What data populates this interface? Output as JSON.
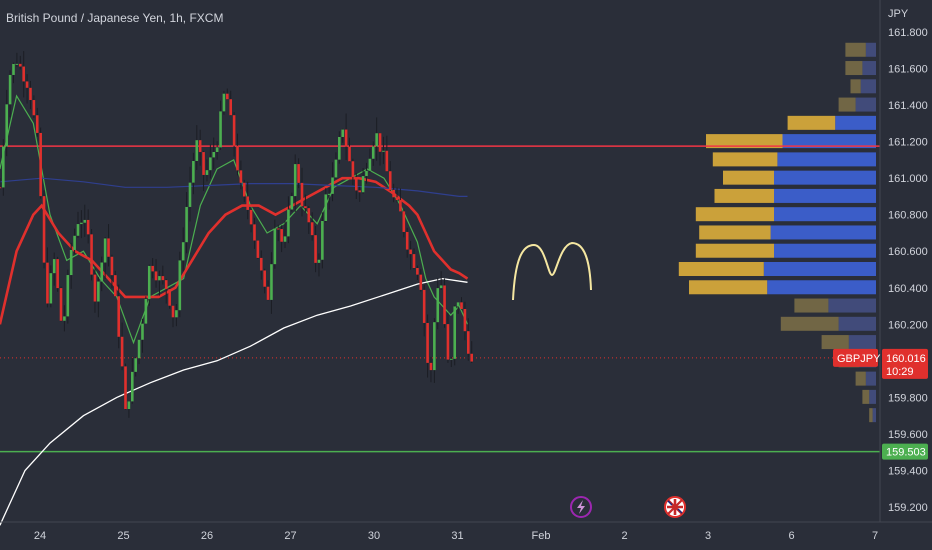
{
  "header": {
    "title": "British Pound / Japanese Yen, 1h, FXCM"
  },
  "chart_data": {
    "type": "candlestick",
    "title": "British Pound / Japanese Yen, 1h, FXCM",
    "currency_label": "JPY",
    "ylim": [
      159.1,
      161.9
    ],
    "y_ticks": [
      "161.800",
      "161.600",
      "161.400",
      "161.200",
      "161.000",
      "160.800",
      "160.600",
      "160.400",
      "160.200",
      "160.000",
      "159.800",
      "159.600",
      "159.400",
      "159.200"
    ],
    "y_tick_values": [
      161.8,
      161.6,
      161.4,
      161.2,
      161.0,
      160.8,
      160.6,
      160.4,
      160.2,
      160.0,
      159.8,
      159.6,
      159.4,
      159.2
    ],
    "x_ticks": [
      "24",
      "25",
      "26",
      "27",
      "30",
      "31",
      "Feb",
      "2",
      "3",
      "6",
      "7"
    ],
    "x_tick_index": [
      0,
      1,
      2,
      3,
      4,
      5,
      6,
      7,
      8,
      9,
      10
    ],
    "last_price": {
      "value": "160.016",
      "symbol": "GBPJPY",
      "countdown": "10:29",
      "color": "#e0302d"
    },
    "support_line": {
      "value": "159.503",
      "color": "#4caf50"
    },
    "resistance_line": {
      "value": 161.175,
      "color": "#f23645"
    },
    "volume_profile_note": "horizontal volume profile on right side",
    "colors": {
      "up_candle": "#4caf50",
      "down_candle": "#e0302d",
      "sma_fast": "#4caf50",
      "sma_mid": "#e0302d",
      "sma_slow": "#2f3f8f",
      "ma_long": "#ffffff",
      "pattern": "#f5e7a1",
      "profile_up": "#d4a83a",
      "profile_down": "#3d63d8",
      "profile_muted_up": "#8a7a4a",
      "profile_muted_down": "#4a5590"
    },
    "price_path": [
      [
        0,
        160.95
      ],
      [
        0.1,
        161.55
      ],
      [
        0.2,
        161.65
      ],
      [
        0.35,
        161.5
      ],
      [
        0.45,
        161.2
      ],
      [
        0.5,
        160.8
      ],
      [
        0.55,
        160.3
      ],
      [
        0.65,
        160.55
      ],
      [
        0.75,
        160.15
      ],
      [
        0.85,
        160.6
      ],
      [
        0.95,
        160.8
      ],
      [
        1.05,
        160.7
      ],
      [
        1.15,
        160.3
      ],
      [
        1.25,
        160.7
      ],
      [
        1.35,
        160.45
      ],
      [
        1.45,
        160.05
      ],
      [
        1.5,
        159.7
      ],
      [
        1.6,
        159.95
      ],
      [
        1.7,
        160.2
      ],
      [
        1.8,
        160.55
      ],
      [
        1.9,
        160.45
      ],
      [
        2.0,
        160.4
      ],
      [
        2.1,
        160.2
      ],
      [
        2.15,
        160.5
      ],
      [
        2.25,
        160.9
      ],
      [
        2.35,
        161.2
      ],
      [
        2.45,
        161.0
      ],
      [
        2.6,
        161.2
      ],
      [
        2.7,
        161.5
      ],
      [
        2.8,
        161.2
      ],
      [
        2.9,
        160.9
      ],
      [
        3.0,
        160.8
      ],
      [
        3.1,
        160.55
      ],
      [
        3.2,
        160.3
      ],
      [
        3.3,
        160.8
      ],
      [
        3.4,
        160.6
      ],
      [
        3.5,
        160.95
      ],
      [
        3.55,
        161.1
      ],
      [
        3.6,
        160.9
      ],
      [
        3.7,
        160.75
      ],
      [
        3.8,
        160.5
      ],
      [
        3.9,
        160.9
      ],
      [
        4.0,
        161.0
      ],
      [
        4.1,
        161.3
      ],
      [
        4.2,
        161.05
      ],
      [
        4.3,
        160.9
      ],
      [
        4.4,
        161.1
      ],
      [
        4.5,
        161.25
      ],
      [
        4.6,
        161.1
      ],
      [
        4.7,
        160.9
      ],
      [
        4.8,
        160.8
      ],
      [
        4.9,
        160.6
      ],
      [
        5.0,
        160.5
      ],
      [
        5.05,
        160.4
      ],
      [
        5.1,
        160.1
      ],
      [
        5.15,
        159.85
      ],
      [
        5.2,
        160.2
      ],
      [
        5.25,
        160.45
      ],
      [
        5.3,
        160.4
      ],
      [
        5.35,
        160.0
      ],
      [
        5.4,
        159.95
      ],
      [
        5.45,
        160.3
      ],
      [
        5.5,
        160.35
      ],
      [
        5.55,
        160.2
      ],
      [
        5.6,
        160.1
      ],
      [
        5.65,
        159.98
      ]
    ],
    "series": [
      {
        "name": "fast_ma",
        "points": [
          [
            0,
            161.05
          ],
          [
            0.2,
            161.45
          ],
          [
            0.4,
            161.3
          ],
          [
            0.6,
            160.8
          ],
          [
            0.8,
            160.55
          ],
          [
            1.0,
            160.6
          ],
          [
            1.2,
            160.45
          ],
          [
            1.4,
            160.35
          ],
          [
            1.6,
            160.1
          ],
          [
            1.8,
            160.35
          ],
          [
            2.0,
            160.4
          ],
          [
            2.2,
            160.45
          ],
          [
            2.4,
            160.85
          ],
          [
            2.6,
            161.05
          ],
          [
            2.8,
            161.1
          ],
          [
            3.0,
            160.85
          ],
          [
            3.2,
            160.7
          ],
          [
            3.4,
            160.75
          ],
          [
            3.6,
            160.85
          ],
          [
            3.8,
            160.75
          ],
          [
            4.0,
            160.95
          ],
          [
            4.2,
            161.0
          ],
          [
            4.4,
            161.05
          ],
          [
            4.6,
            161.0
          ],
          [
            4.8,
            160.85
          ],
          [
            5.0,
            160.65
          ],
          [
            5.1,
            160.45
          ],
          [
            5.2,
            160.35
          ],
          [
            5.3,
            160.3
          ],
          [
            5.4,
            160.25
          ],
          [
            5.5,
            160.3
          ],
          [
            5.6,
            160.2
          ]
        ]
      },
      {
        "name": "mid_ma",
        "points": [
          [
            0,
            160.2
          ],
          [
            0.2,
            160.6
          ],
          [
            0.4,
            160.8
          ],
          [
            0.5,
            160.85
          ],
          [
            0.7,
            160.7
          ],
          [
            0.9,
            160.6
          ],
          [
            1.1,
            160.55
          ],
          [
            1.3,
            160.45
          ],
          [
            1.5,
            160.35
          ],
          [
            1.7,
            160.35
          ],
          [
            1.9,
            160.35
          ],
          [
            2.1,
            160.4
          ],
          [
            2.3,
            160.55
          ],
          [
            2.5,
            160.7
          ],
          [
            2.7,
            160.8
          ],
          [
            2.9,
            160.85
          ],
          [
            3.1,
            160.85
          ],
          [
            3.3,
            160.8
          ],
          [
            3.5,
            160.85
          ],
          [
            3.7,
            160.9
          ],
          [
            3.9,
            160.95
          ],
          [
            4.1,
            161.0
          ],
          [
            4.3,
            161.0
          ],
          [
            4.5,
            160.98
          ],
          [
            4.7,
            160.92
          ],
          [
            4.9,
            160.85
          ],
          [
            5.0,
            160.8
          ],
          [
            5.1,
            160.7
          ],
          [
            5.2,
            160.6
          ],
          [
            5.3,
            160.55
          ],
          [
            5.4,
            160.5
          ],
          [
            5.5,
            160.48
          ],
          [
            5.6,
            160.45
          ]
        ]
      },
      {
        "name": "slow_ma",
        "points": [
          [
            0,
            160.98
          ],
          [
            0.5,
            161.0
          ],
          [
            1.0,
            160.98
          ],
          [
            1.5,
            160.95
          ],
          [
            2.0,
            160.95
          ],
          [
            2.5,
            160.96
          ],
          [
            3.0,
            160.97
          ],
          [
            3.5,
            160.97
          ],
          [
            4.0,
            160.96
          ],
          [
            4.5,
            160.95
          ],
          [
            5.0,
            160.93
          ],
          [
            5.5,
            160.9
          ],
          [
            5.6,
            160.9
          ]
        ]
      },
      {
        "name": "long_ma",
        "points": [
          [
            0,
            159.1
          ],
          [
            0.3,
            159.4
          ],
          [
            0.6,
            159.55
          ],
          [
            1.0,
            159.7
          ],
          [
            1.4,
            159.8
          ],
          [
            1.8,
            159.88
          ],
          [
            2.2,
            159.95
          ],
          [
            2.6,
            160.0
          ],
          [
            3.0,
            160.08
          ],
          [
            3.4,
            160.18
          ],
          [
            3.8,
            160.25
          ],
          [
            4.2,
            160.3
          ],
          [
            4.6,
            160.36
          ],
          [
            5.0,
            160.42
          ],
          [
            5.3,
            160.45
          ],
          [
            5.6,
            160.43
          ]
        ]
      }
    ],
    "profile": [
      {
        "price": 161.7,
        "up": 0.12,
        "down": 0.06,
        "muted": true
      },
      {
        "price": 161.6,
        "up": 0.1,
        "down": 0.08,
        "muted": true
      },
      {
        "price": 161.5,
        "up": 0.06,
        "down": 0.09,
        "muted": true
      },
      {
        "price": 161.4,
        "up": 0.1,
        "down": 0.12,
        "muted": true
      },
      {
        "price": 161.3,
        "up": 0.28,
        "down": 0.24,
        "muted": false
      },
      {
        "price": 161.2,
        "up": 0.45,
        "down": 0.55,
        "muted": false
      },
      {
        "price": 161.1,
        "up": 0.38,
        "down": 0.58,
        "muted": false
      },
      {
        "price": 161.0,
        "up": 0.3,
        "down": 0.6,
        "muted": false
      },
      {
        "price": 160.9,
        "up": 0.35,
        "down": 0.6,
        "muted": false
      },
      {
        "price": 160.8,
        "up": 0.46,
        "down": 0.6,
        "muted": false
      },
      {
        "price": 160.7,
        "up": 0.42,
        "down": 0.62,
        "muted": false
      },
      {
        "price": 160.6,
        "up": 0.46,
        "down": 0.6,
        "muted": false
      },
      {
        "price": 160.5,
        "up": 0.5,
        "down": 0.66,
        "muted": false
      },
      {
        "price": 160.4,
        "up": 0.46,
        "down": 0.64,
        "muted": false
      },
      {
        "price": 160.3,
        "up": 0.2,
        "down": 0.28,
        "muted": true
      },
      {
        "price": 160.2,
        "up": 0.34,
        "down": 0.22,
        "muted": true
      },
      {
        "price": 160.1,
        "up": 0.16,
        "down": 0.16,
        "muted": true
      },
      {
        "price": 160.0,
        "up": 0.12,
        "down": 0.1,
        "muted": true
      },
      {
        "price": 159.9,
        "up": 0.06,
        "down": 0.06,
        "muted": true
      },
      {
        "price": 159.8,
        "up": 0.04,
        "down": 0.04,
        "muted": true
      },
      {
        "price": 159.7,
        "up": 0.02,
        "down": 0.02,
        "muted": true
      }
    ]
  }
}
